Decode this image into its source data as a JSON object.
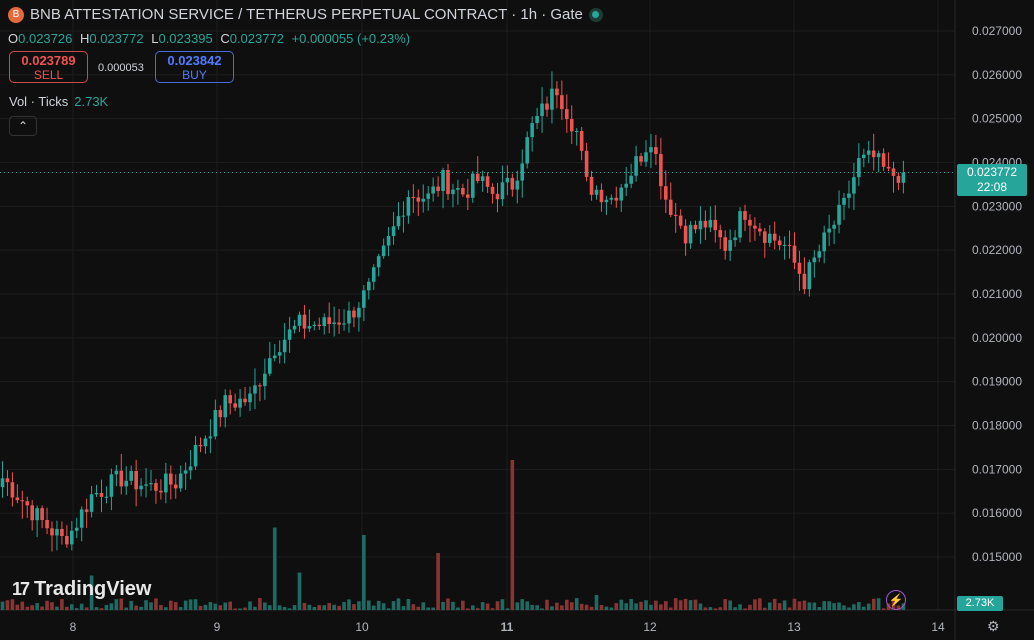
{
  "header": {
    "symbol_icon": "B",
    "title": "BNB ATTESTATION SERVICE / TETHERUS PERPETUAL CONTRACT · 1h · Gate"
  },
  "ohlc": {
    "o_label": "O",
    "o": "0.023726",
    "h_label": "H",
    "h": "0.023772",
    "l_label": "L",
    "l": "0.023395",
    "c_label": "C",
    "c": "0.023772",
    "change": "+0.000055 (+0.23%)"
  },
  "trade": {
    "sell_price": "0.023789",
    "sell_label": "SELL",
    "spread": "0.000053",
    "buy_price": "0.023842",
    "buy_label": "BUY"
  },
  "volume": {
    "label": "Vol · Ticks",
    "value": "2.73K"
  },
  "price_label": {
    "price": "0.023772",
    "countdown": "22:08"
  },
  "branding": {
    "name": "TradingView"
  },
  "colors": {
    "up": "#26a69a",
    "down": "#ef5350",
    "up_vol": "#1e6b63",
    "down_vol": "#8a3434",
    "grid": "#1d1d1d"
  },
  "chart_data": {
    "type": "candlestick",
    "interval": "1h",
    "y_ticks": [
      "0.027000",
      "0.026000",
      "0.025000",
      "0.024000",
      "0.023000",
      "0.022000",
      "0.021000",
      "0.020000",
      "0.019000",
      "0.018000",
      "0.017000",
      "0.016000",
      "0.015000"
    ],
    "x_ticks": [
      "8",
      "9",
      "10",
      "11",
      "12",
      "13",
      "14"
    ],
    "ylim": [
      0.0146,
      0.0272
    ],
    "last_price": 0.023772,
    "anchors": [
      {
        "i": 0,
        "p": 0.0168
      },
      {
        "i": 8,
        "p": 0.0158
      },
      {
        "i": 12,
        "p": 0.0154
      },
      {
        "i": 14,
        "p": 0.0156
      },
      {
        "i": 18,
        "p": 0.0164
      },
      {
        "i": 24,
        "p": 0.0168
      },
      {
        "i": 30,
        "p": 0.0166
      },
      {
        "i": 35,
        "p": 0.0167
      },
      {
        "i": 40,
        "p": 0.0176
      },
      {
        "i": 45,
        "p": 0.0185
      },
      {
        "i": 50,
        "p": 0.0186
      },
      {
        "i": 55,
        "p": 0.0198
      },
      {
        "i": 60,
        "p": 0.0203
      },
      {
        "i": 65,
        "p": 0.0203
      },
      {
        "i": 70,
        "p": 0.0205
      },
      {
        "i": 74,
        "p": 0.0211
      },
      {
        "i": 78,
        "p": 0.0222
      },
      {
        "i": 82,
        "p": 0.0233
      },
      {
        "i": 86,
        "p": 0.0232
      },
      {
        "i": 89,
        "p": 0.0236
      },
      {
        "i": 93,
        "p": 0.0233
      },
      {
        "i": 96,
        "p": 0.0236
      },
      {
        "i": 99,
        "p": 0.0233
      },
      {
        "i": 103,
        "p": 0.0235
      },
      {
        "i": 107,
        "p": 0.0248
      },
      {
        "i": 112,
        "p": 0.0257
      },
      {
        "i": 116,
        "p": 0.0247
      },
      {
        "i": 118,
        "p": 0.0235
      },
      {
        "i": 123,
        "p": 0.0232
      },
      {
        "i": 127,
        "p": 0.0238
      },
      {
        "i": 131,
        "p": 0.0246
      },
      {
        "i": 134,
        "p": 0.0232
      },
      {
        "i": 138,
        "p": 0.0224
      },
      {
        "i": 142,
        "p": 0.0226
      },
      {
        "i": 146,
        "p": 0.0221
      },
      {
        "i": 150,
        "p": 0.0229
      },
      {
        "i": 154,
        "p": 0.0224
      },
      {
        "i": 158,
        "p": 0.0221
      },
      {
        "i": 162,
        "p": 0.0213
      },
      {
        "i": 166,
        "p": 0.0222
      },
      {
        "i": 170,
        "p": 0.023
      },
      {
        "i": 173,
        "p": 0.024
      },
      {
        "i": 176,
        "p": 0.0241
      },
      {
        "i": 179,
        "p": 0.0237
      },
      {
        "i": 182,
        "p": 0.023772
      }
    ],
    "volume_max": "7.2K"
  }
}
